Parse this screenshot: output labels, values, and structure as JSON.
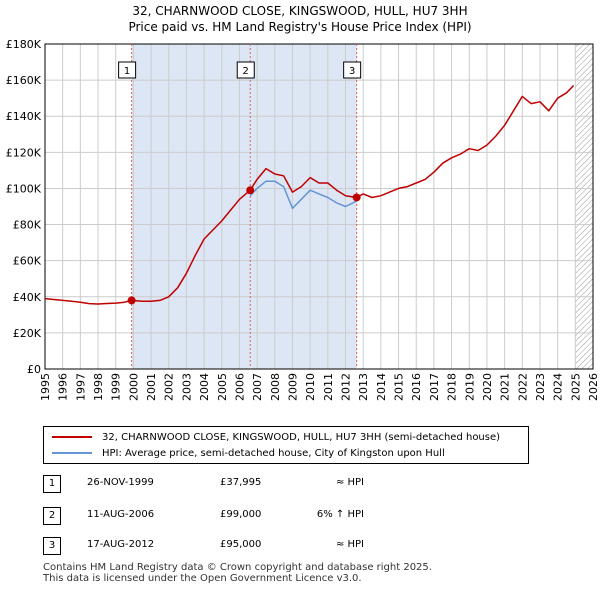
{
  "title": {
    "line1": "32, CHARNWOOD CLOSE, KINGSWOOD, HULL, HU7 3HH",
    "line2": "Price paid vs. HM Land Registry's House Price Index (HPI)"
  },
  "colors": {
    "property": "#c00000",
    "hpi": "#6495d2",
    "shade": "#dde6f4",
    "marker_line": "#e06060",
    "grid": "#cccccc",
    "hatch": "#999999"
  },
  "chart_data": {
    "type": "line",
    "xlim": [
      1995,
      2026
    ],
    "ylim": [
      0,
      180000
    ],
    "x_ticks": [
      "1995",
      "1996",
      "1997",
      "1998",
      "1999",
      "2000",
      "2001",
      "2002",
      "2003",
      "2004",
      "2005",
      "2006",
      "2007",
      "2008",
      "2009",
      "2010",
      "2011",
      "2012",
      "2013",
      "2014",
      "2015",
      "2016",
      "2017",
      "2018",
      "2019",
      "2020",
      "2021",
      "2022",
      "2023",
      "2024",
      "2025",
      "2026"
    ],
    "y_ticks": [
      {
        "value": 0,
        "label": "£0"
      },
      {
        "value": 20000,
        "label": "£20K"
      },
      {
        "value": 40000,
        "label": "£40K"
      },
      {
        "value": 60000,
        "label": "£60K"
      },
      {
        "value": 80000,
        "label": "£80K"
      },
      {
        "value": 100000,
        "label": "£100K"
      },
      {
        "value": 120000,
        "label": "£120K"
      },
      {
        "value": 140000,
        "label": "£140K"
      },
      {
        "value": 160000,
        "label": "£160K"
      },
      {
        "value": 180000,
        "label": "£180K"
      }
    ],
    "shaded_range": [
      1999.9,
      2012.63
    ],
    "forecast_from": 2025.0,
    "series": [
      {
        "name": "32, CHARNWOOD CLOSE, KINGSWOOD, HULL, HU7 3HH (semi-detached house)",
        "points": [
          [
            1995.0,
            39000
          ],
          [
            1995.5,
            38500
          ],
          [
            1996.0,
            38000
          ],
          [
            1996.5,
            37500
          ],
          [
            1997.0,
            37000
          ],
          [
            1997.5,
            36200
          ],
          [
            1998.0,
            36000
          ],
          [
            1998.5,
            36300
          ],
          [
            1999.0,
            36500
          ],
          [
            1999.5,
            37000
          ],
          [
            1999.9,
            37995
          ],
          [
            2000.5,
            37500
          ],
          [
            2001.0,
            37500
          ],
          [
            2001.5,
            38000
          ],
          [
            2002.0,
            40000
          ],
          [
            2002.5,
            45000
          ],
          [
            2003.0,
            53000
          ],
          [
            2003.5,
            63000
          ],
          [
            2004.0,
            72000
          ],
          [
            2004.5,
            77000
          ],
          [
            2005.0,
            82000
          ],
          [
            2005.5,
            88000
          ],
          [
            2006.0,
            94000
          ],
          [
            2006.61,
            99000
          ],
          [
            2007.0,
            105000
          ],
          [
            2007.5,
            111000
          ],
          [
            2008.0,
            108000
          ],
          [
            2008.5,
            107000
          ],
          [
            2009.0,
            98000
          ],
          [
            2009.5,
            101000
          ],
          [
            2010.0,
            106000
          ],
          [
            2010.5,
            103000
          ],
          [
            2011.0,
            103000
          ],
          [
            2011.5,
            99000
          ],
          [
            2012.0,
            96000
          ],
          [
            2012.63,
            95000
          ],
          [
            2013.0,
            97000
          ],
          [
            2013.5,
            95000
          ],
          [
            2014.0,
            96000
          ],
          [
            2014.5,
            98000
          ],
          [
            2015.0,
            100000
          ],
          [
            2015.5,
            101000
          ],
          [
            2016.0,
            103000
          ],
          [
            2016.5,
            105000
          ],
          [
            2017.0,
            109000
          ],
          [
            2017.5,
            114000
          ],
          [
            2018.0,
            117000
          ],
          [
            2018.5,
            119000
          ],
          [
            2019.0,
            122000
          ],
          [
            2019.5,
            121000
          ],
          [
            2020.0,
            124000
          ],
          [
            2020.5,
            129000
          ],
          [
            2021.0,
            135000
          ],
          [
            2021.5,
            143000
          ],
          [
            2022.0,
            151000
          ],
          [
            2022.5,
            147000
          ],
          [
            2023.0,
            148000
          ],
          [
            2023.5,
            143000
          ],
          [
            2024.0,
            150000
          ],
          [
            2024.5,
            153000
          ],
          [
            2024.9,
            157000
          ]
        ]
      },
      {
        "name": "HPI: Average price, semi-detached house, City of Kingston upon Hull",
        "points": [
          [
            2006.61,
            96000
          ],
          [
            2007.0,
            100000
          ],
          [
            2007.5,
            104000
          ],
          [
            2008.0,
            104000
          ],
          [
            2008.5,
            101000
          ],
          [
            2009.0,
            89000
          ],
          [
            2009.5,
            94000
          ],
          [
            2010.0,
            99000
          ],
          [
            2010.5,
            97000
          ],
          [
            2011.0,
            95000
          ],
          [
            2011.5,
            92000
          ],
          [
            2012.0,
            90000
          ],
          [
            2012.63,
            93000
          ]
        ]
      }
    ],
    "sales": [
      {
        "label": "1",
        "x": 1999.9,
        "price": 37995
      },
      {
        "label": "2",
        "x": 2006.61,
        "price": 99000
      },
      {
        "label": "3",
        "x": 2012.63,
        "price": 95000
      }
    ]
  },
  "legend": {
    "property": "32, CHARNWOOD CLOSE, KINGSWOOD, HULL, HU7 3HH (semi-detached house)",
    "hpi": "HPI: Average price, semi-detached house, City of Kingston upon Hull"
  },
  "transactions": [
    {
      "num": "1",
      "date": "26-NOV-1999",
      "price": "£37,995",
      "hpi": "≈ HPI"
    },
    {
      "num": "2",
      "date": "11-AUG-2006",
      "price": "£99,000",
      "hpi": "6% ↑ HPI"
    },
    {
      "num": "3",
      "date": "17-AUG-2012",
      "price": "£95,000",
      "hpi": "≈ HPI"
    }
  ],
  "footer": {
    "line1": "Contains HM Land Registry data © Crown copyright and database right 2025.",
    "line2": "This data is licensed under the Open Government Licence v3.0."
  }
}
